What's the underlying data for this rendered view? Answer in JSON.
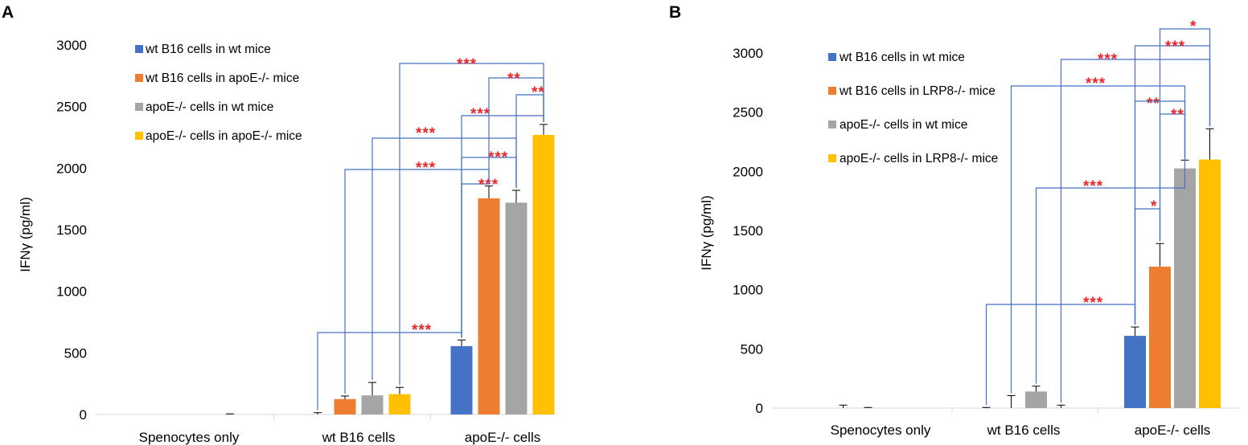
{
  "colors": {
    "series": [
      "#4472c4",
      "#ed7d31",
      "#a5a5a5",
      "#ffc000"
    ],
    "bracket": "#4472c4",
    "significance": "#e8262b",
    "axis": "#000000"
  },
  "chart_data": [
    {
      "panel": "A",
      "type": "bar",
      "ylabel": "IFNγ (pg/ml)",
      "ylim": [
        0,
        3000
      ],
      "yticks": [
        "0",
        "500",
        "1000",
        "1500",
        "2000",
        "2500",
        "3000"
      ],
      "categories": [
        "Spenocytes only",
        "wt B16 cells",
        "apoE-/- cells"
      ],
      "series": [
        {
          "name": "wt B16 cells in wt mice",
          "values": [
            0,
            0,
            555
          ],
          "errors": [
            0,
            15,
            50
          ]
        },
        {
          "name": "wt B16 cells in apoE-/- mice",
          "values": [
            0,
            125,
            1755
          ],
          "errors": [
            0,
            25,
            100
          ]
        },
        {
          "name": "apoE-/- cells in wt mice",
          "values": [
            0,
            155,
            1720
          ],
          "errors": [
            0,
            105,
            100
          ]
        },
        {
          "name": "apoE-/- cells in apoE-/- mice",
          "values": [
            0,
            165,
            2270
          ],
          "errors": [
            5,
            55,
            85
          ]
        }
      ],
      "significance": [
        {
          "from": "wt B16 cells / wt B16 cells in wt mice",
          "to": "apoE-/- cells / wt B16 cells in wt mice",
          "label": "***"
        },
        {
          "from": "wt B16 cells / wt B16 cells in apoE-/- mice",
          "to": "apoE-/- cells / wt B16 cells in apoE-/- mice",
          "label": "***"
        },
        {
          "from": "wt B16 cells / apoE-/- cells in wt mice",
          "to": "apoE-/- cells / apoE-/- cells in wt mice",
          "label": "***"
        },
        {
          "from": "wt B16 cells / apoE-/- cells in apoE-/- mice",
          "to": "apoE-/- cells / apoE-/- cells in apoE-/- mice",
          "label": "***"
        },
        {
          "from": "apoE-/- cells / wt B16 cells in wt mice",
          "to": "apoE-/- cells / wt B16 cells in apoE-/- mice",
          "label": "***"
        },
        {
          "from": "apoE-/- cells / wt B16 cells in wt mice",
          "to": "apoE-/- cells / apoE-/- cells in wt mice",
          "label": "***"
        },
        {
          "from": "apoE-/- cells / wt B16 cells in wt mice",
          "to": "apoE-/- cells / apoE-/- cells in apoE-/- mice",
          "label": "***"
        },
        {
          "from": "apoE-/- cells / wt B16 cells in apoE-/- mice",
          "to": "apoE-/- cells / apoE-/- cells in apoE-/- mice",
          "label": "**"
        },
        {
          "from": "apoE-/- cells / apoE-/- cells in wt mice",
          "to": "apoE-/- cells / apoE-/- cells in apoE-/- mice",
          "label": "**"
        }
      ]
    },
    {
      "panel": "B",
      "type": "bar",
      "ylabel": "IFNγ (pg/ml)",
      "ylim": [
        0,
        3000
      ],
      "yticks": [
        "0",
        "500",
        "1000",
        "1500",
        "2000",
        "2500",
        "3000"
      ],
      "categories": [
        "Spenocytes only",
        "wt B16 cells",
        "apoE-/- cells"
      ],
      "series": [
        {
          "name": "wt B16 cells in wt mice",
          "values": [
            0,
            0,
            610
          ],
          "errors": [
            25,
            5,
            75
          ]
        },
        {
          "name": "wt B16 cells in LRP8-/- mice",
          "values": [
            0,
            0,
            1195
          ],
          "errors": [
            5,
            105,
            195
          ]
        },
        {
          "name": "apoE-/- cells in wt mice",
          "values": [
            0,
            140,
            2025
          ],
          "errors": [
            0,
            45,
            70
          ]
        },
        {
          "name": "apoE-/- cells in LRP8-/- mice",
          "values": [
            0,
            0,
            2100
          ],
          "errors": [
            0,
            25,
            260
          ]
        }
      ],
      "significance": [
        {
          "from": "wt B16 cells / wt B16 cells in wt mice",
          "to": "apoE-/- cells / wt B16 cells in wt mice",
          "label": "***"
        },
        {
          "from": "wt B16 cells / apoE-/- cells in wt mice",
          "to": "apoE-/- cells / apoE-/- cells in wt mice",
          "label": "***"
        },
        {
          "from": "apoE-/- cells / wt B16 cells in wt mice",
          "to": "apoE-/- cells / wt B16 cells in LRP8-/- mice",
          "label": "*"
        },
        {
          "from": "apoE-/- cells / wt B16 cells in LRP8-/- mice",
          "to": "apoE-/- cells / apoE-/- cells in wt mice",
          "label": "**"
        },
        {
          "from": "apoE-/- cells / wt B16 cells in wt mice",
          "to": "apoE-/- cells / apoE-/- cells in wt mice",
          "label": "**"
        },
        {
          "from": "wt B16 cells / wt B16 cells in LRP8-/- mice",
          "to": "apoE-/- cells / apoE-/- cells in wt mice",
          "label": "***"
        },
        {
          "from": "wt B16 cells / apoE-/- cells in LRP8-/- mice",
          "to": "apoE-/- cells / apoE-/- cells in LRP8-/- mice",
          "label": "***"
        },
        {
          "from": "apoE-/- cells / wt B16 cells in wt mice",
          "to": "apoE-/- cells / apoE-/- cells in LRP8-/- mice",
          "label": "***"
        },
        {
          "from": "apoE-/- cells / wt B16 cells in LRP8-/- mice",
          "to": "apoE-/- cells / apoE-/- cells in LRP8-/- mice",
          "label": "*"
        }
      ]
    }
  ]
}
